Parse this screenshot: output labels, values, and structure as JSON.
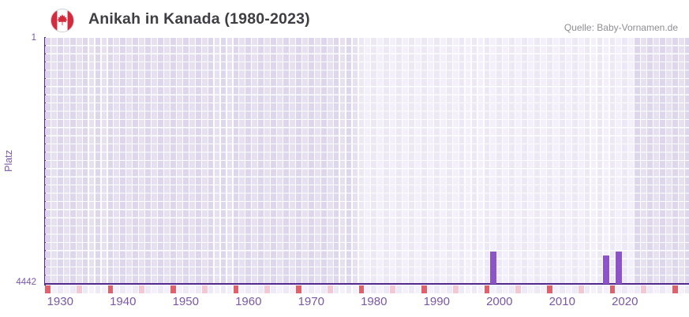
{
  "header": {
    "title": "Anikah in Kanada (1980-2023)",
    "source": "Quelle: Baby-Vornamen.de"
  },
  "chart_data": {
    "type": "bar",
    "title": "Anikah in Kanada (1980-2023)",
    "ylabel": "Platz",
    "y_axis": {
      "top_tick": "1",
      "bottom_tick": "4442",
      "min": 1,
      "max": 4442,
      "inverted": true
    },
    "x_axis": {
      "first_year": 1928,
      "last_year": 2030,
      "tick_labels": [
        1930,
        1940,
        1950,
        1960,
        1970,
        1980,
        1990,
        2000,
        2010,
        2020
      ]
    },
    "data_range_highlight": {
      "from_year": 1978,
      "to_year": 2021
    },
    "bars": [
      {
        "year": 1999,
        "platz": 3860
      },
      {
        "year": 2017,
        "platz": 3930
      },
      {
        "year": 2019,
        "platz": 3860
      }
    ],
    "axis_strip_markers": {
      "red_years": [
        1928,
        1938,
        1948,
        1958,
        1968,
        1978,
        1988,
        1998,
        2008,
        2018,
        2028
      ],
      "pink_years": [
        1933,
        1943,
        1953,
        1963,
        1973,
        1983,
        1993,
        2003,
        2013,
        2023
      ]
    },
    "grid": true,
    "legend": false
  },
  "colors": {
    "bar_purple": "#8c54c6",
    "axis_line": "#54288d",
    "tick_label": "#7b57a5",
    "title_text": "#3e3e44",
    "source_text": "#8e8e94",
    "grid_dark_even": "#ded6ec",
    "grid_dark_odd": "#e6e0f1",
    "grid_light_even": "#ece8f6",
    "grid_light_odd": "#f3f0fb",
    "strip_even": "#ede9f6",
    "strip_odd": "#f4f1fa",
    "marker_red": "#e0606c",
    "marker_pink": "#f3c7d4",
    "flag_red": "#d5293d",
    "flag_ring": "#cfcfd4"
  }
}
